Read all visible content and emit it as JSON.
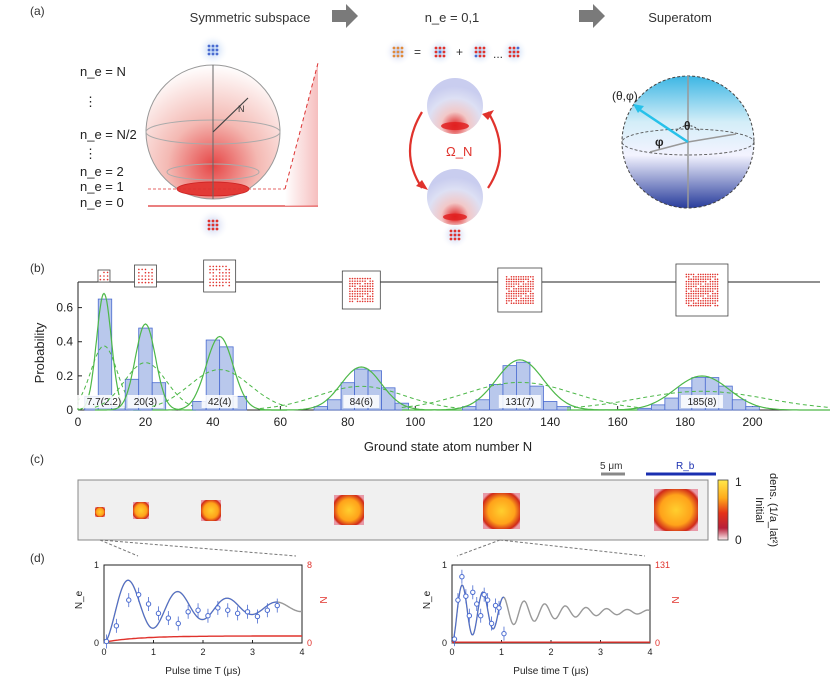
{
  "panels": {
    "a": "(a)",
    "b": "(b)",
    "c": "(c)",
    "d": "(d)"
  },
  "panel_a": {
    "titles": {
      "left": "Symmetric subspace",
      "middle": "n_e = 0,1",
      "right": "Superatom"
    },
    "ne_labels": [
      "n_e = N",
      "⋮",
      "n_e = N/2",
      "⋮",
      "n_e = 2",
      "n_e = 1",
      "n_e = 0"
    ],
    "sphere_n_label": "N",
    "omega_label": "Ω_N",
    "bloch_angle_label": "(θ,φ)",
    "theta_label": "θ",
    "phi_label": "φ",
    "equation": {
      "equals": "=",
      "plus": "+",
      "dots": "..."
    }
  },
  "chart_data": [
    {
      "type": "bar",
      "panel": "b",
      "title": "",
      "xlabel": "Ground state atom number N",
      "ylabel": "Probability",
      "xlim": [
        0,
        220
      ],
      "ylim": [
        0,
        0.75
      ],
      "xticks": [
        0,
        20,
        40,
        60,
        80,
        100,
        120,
        140,
        160,
        180,
        200
      ],
      "yticks": [
        0,
        0.2,
        0.4,
        0.6
      ],
      "bin_width": 4,
      "groups": [
        {
          "label": "7.7(2.2)",
          "mean": 7.7,
          "sigma": 2.2,
          "bins": [
            2,
            6,
            10
          ],
          "values": [
            0.08,
            0.65,
            0.02
          ]
        },
        {
          "label": "20(3)",
          "mean": 20,
          "sigma": 3,
          "bins": [
            14,
            18,
            22
          ],
          "values": [
            0.18,
            0.48,
            0.16
          ]
        },
        {
          "label": "42(4)",
          "mean": 42,
          "sigma": 4,
          "bins": [
            34,
            38,
            42,
            46
          ],
          "values": [
            0.05,
            0.41,
            0.37,
            0.08
          ]
        },
        {
          "label": "84(6)",
          "mean": 84,
          "sigma": 6,
          "bins": [
            70,
            74,
            78,
            82,
            86,
            90,
            94
          ],
          "values": [
            0.02,
            0.06,
            0.16,
            0.24,
            0.23,
            0.13,
            0.04
          ]
        },
        {
          "label": "131(7)",
          "mean": 131,
          "sigma": 7,
          "bins": [
            114,
            118,
            122,
            126,
            130,
            134,
            138,
            142
          ],
          "values": [
            0.02,
            0.06,
            0.15,
            0.26,
            0.28,
            0.14,
            0.05,
            0.02
          ]
        },
        {
          "label": "185(8)",
          "mean": 185,
          "sigma": 8,
          "bins": [
            166,
            170,
            174,
            178,
            182,
            186,
            190,
            194,
            198
          ],
          "values": [
            0.01,
            0.03,
            0.07,
            0.13,
            0.19,
            0.19,
            0.14,
            0.06,
            0.02
          ]
        }
      ]
    },
    {
      "type": "line",
      "panel": "d-left",
      "xlabel": "Pulse time T (μs)",
      "ylabel": "N_e",
      "ylabel_right": "N",
      "xlim": [
        0,
        4
      ],
      "ylim": [
        0,
        1
      ],
      "xticks": [
        0,
        1,
        2,
        3,
        4
      ],
      "yticks": [
        0,
        1
      ],
      "right_ticks": [
        "8",
        "0"
      ],
      "points_x": [
        0.05,
        0.25,
        0.5,
        0.7,
        0.9,
        1.1,
        1.3,
        1.5,
        1.7,
        1.9,
        2.1,
        2.3,
        2.5,
        2.7,
        2.9,
        3.1,
        3.3,
        3.5
      ],
      "points_y": [
        0.02,
        0.22,
        0.55,
        0.62,
        0.5,
        0.38,
        0.32,
        0.25,
        0.4,
        0.42,
        0.35,
        0.45,
        0.42,
        0.38,
        0.4,
        0.34,
        0.42,
        0.48
      ]
    },
    {
      "type": "line",
      "panel": "d-right",
      "xlabel": "Pulse time T (μs)",
      "ylabel": "N_e",
      "ylabel_right": "N",
      "xlim": [
        0,
        4
      ],
      "ylim": [
        0,
        1
      ],
      "xticks": [
        0,
        1,
        2,
        3,
        4
      ],
      "yticks": [
        0,
        1
      ],
      "right_ticks": [
        "131",
        "0"
      ],
      "points_x": [
        0.05,
        0.12,
        0.2,
        0.28,
        0.35,
        0.42,
        0.5,
        0.58,
        0.65,
        0.72,
        0.8,
        0.88,
        0.95,
        1.05
      ],
      "points_y": [
        0.05,
        0.55,
        0.85,
        0.6,
        0.35,
        0.65,
        0.5,
        0.35,
        0.62,
        0.55,
        0.25,
        0.48,
        0.45,
        0.12
      ]
    }
  ],
  "panel_c": {
    "scale_label": "5 μm",
    "rb_label": "R_b",
    "colorbar": {
      "max": "1",
      "min": "0",
      "title_line1": "Initial",
      "title_line2": "dens. (1/a_lat²)"
    },
    "colors": {
      "scale": "#888888",
      "rb": "#1a2fb0"
    }
  },
  "colors": {
    "bar_fill": "#b9c8ec",
    "bar_edge": "#4a6bd0",
    "fit": "#4db848",
    "red": "#e0322c",
    "blue": "#4a6bd0",
    "grey": "#999999"
  }
}
